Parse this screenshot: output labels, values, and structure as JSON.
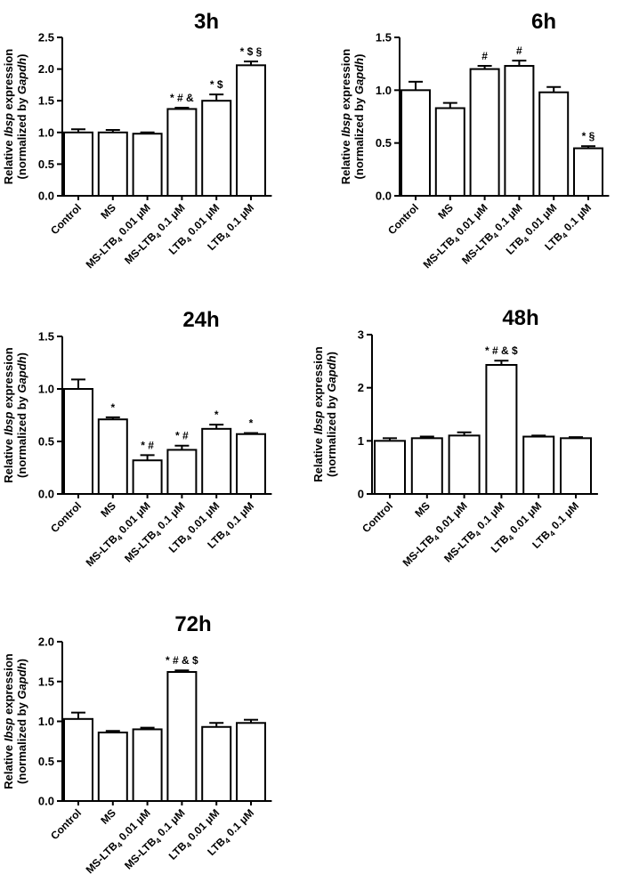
{
  "chart_data": [
    {
      "type": "bar",
      "title": "3h",
      "ylabel_line1_pre": "Relative ",
      "ylabel_line1_gene": "Ibsp",
      "ylabel_line1_post": " expression",
      "ylabel_line2_pre": "(normalized by ",
      "ylabel_line2_gene": "Gapdh",
      "ylabel_line2_post": ")",
      "ylim": [
        0,
        2.5
      ],
      "yticks": [
        "0.0",
        "0.5",
        "1.0",
        "1.5",
        "2.0",
        "2.5"
      ],
      "categories": [
        "Control",
        "MS",
        "MS-LTB4 0.01 μM",
        "MS-LTB4 0.1 μM",
        "LTB4 0.01 μM",
        "LTB4 0.1 μM"
      ],
      "values": [
        1.0,
        1.0,
        0.98,
        1.37,
        1.5,
        2.06
      ],
      "errors": [
        0.05,
        0.04,
        0.02,
        0.02,
        0.1,
        0.06
      ],
      "significance": [
        "",
        "",
        "",
        "* # &",
        "* $",
        "* $ §"
      ]
    },
    {
      "type": "bar",
      "title": "6h",
      "ylabel_line1_pre": "Relative ",
      "ylabel_line1_gene": "Ibsp",
      "ylabel_line1_post": " expression",
      "ylabel_line2_pre": "(normalized by ",
      "ylabel_line2_gene": "Gapdh",
      "ylabel_line2_post": ")",
      "ylim": [
        0,
        1.5
      ],
      "yticks": [
        "0.0",
        "0.5",
        "1.0",
        "1.5"
      ],
      "categories": [
        "Control",
        "MS",
        "MS-LTB4 0.01 μM",
        "MS-LTB4 0.1 μM",
        "LTB4 0.01 μM",
        "LTB4 0.1 μM"
      ],
      "values": [
        1.0,
        0.83,
        1.2,
        1.23,
        0.98,
        0.45
      ],
      "errors": [
        0.08,
        0.05,
        0.03,
        0.05,
        0.05,
        0.02
      ],
      "significance": [
        "",
        "",
        "#",
        "#",
        "",
        "* §"
      ]
    },
    {
      "type": "bar",
      "title": "24h",
      "ylabel_line1_pre": "Relative ",
      "ylabel_line1_gene": "Ibsp",
      "ylabel_line1_post": " expression",
      "ylabel_line2_pre": "(normalized by ",
      "ylabel_line2_gene": "Gapdh",
      "ylabel_line2_post": ")",
      "ylim": [
        0,
        1.5
      ],
      "yticks": [
        "0.0",
        "0.5",
        "1.0",
        "1.5"
      ],
      "categories": [
        "Control",
        "MS",
        "MS-LTB4 0.01 μM",
        "MS-LTB4 0.1 μM",
        "LTB4 0.01 μM",
        "LTB4 0.1 μM"
      ],
      "values": [
        1.0,
        0.71,
        0.32,
        0.42,
        0.62,
        0.57
      ],
      "errors": [
        0.09,
        0.02,
        0.05,
        0.04,
        0.04,
        0.01
      ],
      "significance": [
        "",
        "*",
        "* #",
        "* #",
        "*",
        "*"
      ]
    },
    {
      "type": "bar",
      "title": "48h",
      "ylabel_line1_pre": "Relative ",
      "ylabel_line1_gene": "Ibsp",
      "ylabel_line1_post": " expression",
      "ylabel_line2_pre": "(normalized by ",
      "ylabel_line2_gene": "Gapdh",
      "ylabel_line2_post": ")",
      "ylim": [
        0,
        3
      ],
      "yticks": [
        "0",
        "1",
        "2",
        "3"
      ],
      "categories": [
        "Control",
        "MS",
        "MS-LTB4 0.01 μM",
        "MS-LTB4 0.1 μM",
        "LTB4 0.01 μM",
        "LTB4 0.1 μM"
      ],
      "values": [
        1.0,
        1.05,
        1.1,
        2.43,
        1.08,
        1.05
      ],
      "errors": [
        0.05,
        0.03,
        0.06,
        0.08,
        0.02,
        0.02
      ],
      "significance": [
        "",
        "",
        "",
        "* # & $",
        "",
        ""
      ]
    },
    {
      "type": "bar",
      "title": "72h",
      "ylabel_line1_pre": "Relative ",
      "ylabel_line1_gene": "Ibsp",
      "ylabel_line1_post": " expression",
      "ylabel_line2_pre": "(normalized by ",
      "ylabel_line2_gene": "Gapdh",
      "ylabel_line2_post": ")",
      "ylim": [
        0,
        2.0
      ],
      "yticks": [
        "0.0",
        "0.5",
        "1.0",
        "1.5",
        "2.0"
      ],
      "categories": [
        "Control",
        "MS",
        "MS-LTB4 0.01 μM",
        "MS-LTB4 0.1 μM",
        "LTB4 0.01 μM",
        "LTB4 0.1 μM"
      ],
      "values": [
        1.03,
        0.86,
        0.9,
        1.62,
        0.93,
        0.98
      ],
      "errors": [
        0.08,
        0.02,
        0.02,
        0.02,
        0.05,
        0.04
      ],
      "significance": [
        "",
        "",
        "",
        "* # & $",
        "",
        ""
      ]
    }
  ]
}
